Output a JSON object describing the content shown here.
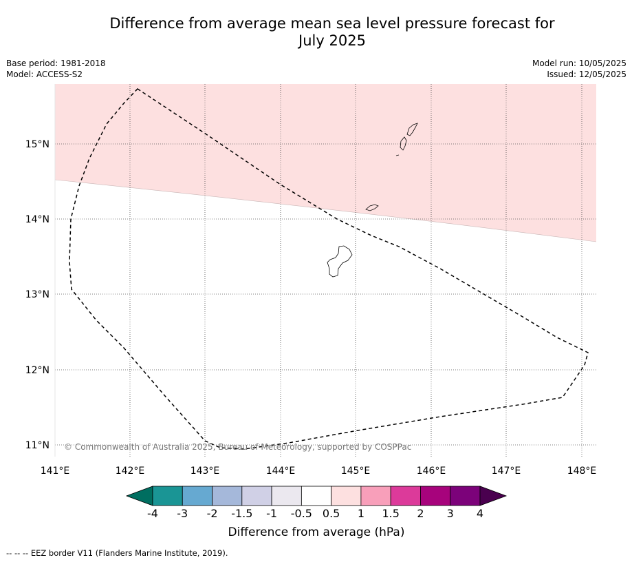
{
  "title_line1": "Difference from average mean sea level pressure forecast for",
  "title_line2": "July 2025",
  "meta": {
    "base_period": "Base period: 1981-2018",
    "model": "Model: ACCESS-S2",
    "model_run": "Model run: 10/05/2025",
    "issued": "Issued: 12/05/2025"
  },
  "copyright": "© Commonwealth of Australia 2025, Bureau of Meteorology, supported by COSPPac",
  "footer": "--  --  -- EEZ border V11 (Flanders Marine Institute, 2019).",
  "colorbar": {
    "label": "Difference from average (hPa)",
    "ticks": [
      "-4",
      "-3",
      "-2",
      "-1.5",
      "-1",
      "-0.5",
      "0.5",
      "1",
      "1.5",
      "2",
      "3",
      "4"
    ],
    "colors": [
      "#006e60",
      "#1a9595",
      "#66a9d1",
      "#a5b8da",
      "#d0d0e6",
      "#ebe8ef",
      "#ffffff",
      "#fde0e0",
      "#f89fba",
      "#dc3a9a",
      "#a7037c",
      "#7c027a",
      "#4a004f"
    ]
  },
  "map": {
    "lon_ticks": [
      "141°E",
      "142°E",
      "143°E",
      "144°E",
      "145°E",
      "146°E",
      "147°E",
      "148°E"
    ],
    "lat_ticks": [
      "15°N",
      "14°N",
      "13°N",
      "12°N",
      "11°N"
    ],
    "anomaly_band": {
      "range_hpa": [
        0.5,
        1
      ],
      "color": "#fde0e0"
    }
  }
}
